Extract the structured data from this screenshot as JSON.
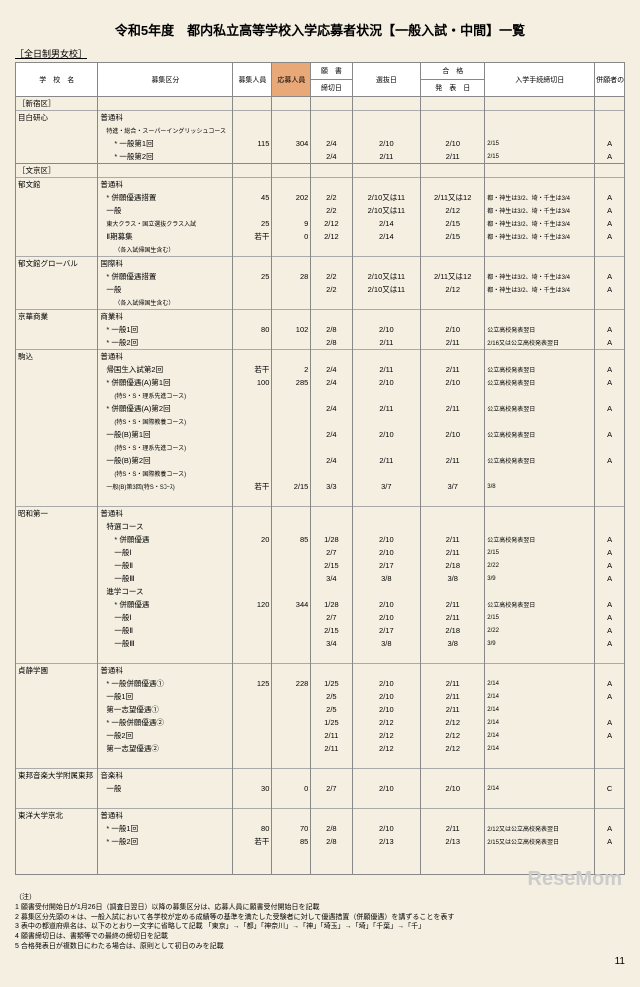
{
  "title": "令和5年度　都内私立高等学校入学応募者状況【一般入試・中間】一覧",
  "subtitle": "［全日制男女校］",
  "headers": {
    "school": "学　校　名",
    "category": "募集区分",
    "capacity": "募集人員",
    "applicants": "応募人員",
    "gansho": "願　書",
    "deadline": "締切日",
    "selection": "選抜日",
    "pass": "合　格",
    "announce": "発　表　日",
    "procedure": "入学手続締切日",
    "special": "併願者の特例取扱い"
  },
  "rows": [
    {
      "type": "ward",
      "school": "［新宿区］"
    },
    {
      "type": "school",
      "school": "目白研心",
      "cat": "普通科"
    },
    {
      "cat": "特進・総合・スーパーイングリッシュコース",
      "cls": "pl1 sm"
    },
    {
      "cat": "* 一般第1回",
      "cls": "pl2",
      "cap": "115",
      "app": "304",
      "dl": "2/4",
      "sel": "2/10",
      "ann": "2/10",
      "proc": "2/15",
      "sp": "A"
    },
    {
      "cat": "* 一般第2回",
      "cls": "pl2",
      "dl": "2/4",
      "sel": "2/11",
      "ann": "2/11",
      "proc": "2/15",
      "sp": "A"
    },
    {
      "type": "ward",
      "school": "［文京区］"
    },
    {
      "type": "school",
      "school": "郁文館",
      "cat": "普通科"
    },
    {
      "cat": "* 併願優遇措置",
      "cls": "pl1",
      "cap": "45",
      "app": "202",
      "dl": "2/2",
      "sel": "2/10又は11",
      "ann": "2/11又は12",
      "proc": "都・神生は3/2、埼・千生は3/4",
      "sp": "A"
    },
    {
      "cat": "一般",
      "cls": "pl1",
      "dl": "2/2",
      "sel": "2/10又は11",
      "ann": "2/12",
      "proc": "都・神生は3/2、埼・千生は3/4",
      "sp": "A"
    },
    {
      "cat": "東大クラス・国立選抜クラス入試",
      "cls": "pl1 sm",
      "cap": "25",
      "app": "9",
      "dl": "2/12",
      "sel": "2/14",
      "ann": "2/15",
      "proc": "都・神生は3/2、埼・千生は3/4",
      "sp": "A"
    },
    {
      "cat": "Ⅱ期募集",
      "cls": "pl1",
      "cap": "若干",
      "app": "0",
      "dl": "2/12",
      "sel": "2/14",
      "ann": "2/15",
      "proc": "都・神生は3/2、埼・千生は3/4",
      "sp": "A"
    },
    {
      "cat": "（各入試帰国生含む）",
      "cls": "pl2 sm"
    },
    {
      "type": "school",
      "school": "郁文館グローバル",
      "cat": "国際科"
    },
    {
      "cat": "* 併願優遇措置",
      "cls": "pl1",
      "cap": "25",
      "app": "28",
      "dl": "2/2",
      "sel": "2/10又は11",
      "ann": "2/11又は12",
      "proc": "都・神生は3/2、埼・千生は3/4",
      "sp": "A"
    },
    {
      "cat": "一般",
      "cls": "pl1",
      "dl": "2/2",
      "sel": "2/10又は11",
      "ann": "2/12",
      "proc": "都・神生は3/2、埼・千生は3/4",
      "sp": "A"
    },
    {
      "cat": "（各入試帰国生含む）",
      "cls": "pl2 sm"
    },
    {
      "type": "school",
      "school": "京華商業",
      "cat": "商業科"
    },
    {
      "cat": "* 一般1回",
      "cls": "pl1",
      "cap": "80",
      "app": "102",
      "dl": "2/8",
      "sel": "2/10",
      "ann": "2/10",
      "proc": "公立高校発表翌日",
      "sp": "A"
    },
    {
      "cat": "* 一般2回",
      "cls": "pl1",
      "dl": "2/8",
      "sel": "2/11",
      "ann": "2/11",
      "proc": "2/16又は公立高校発表翌日",
      "sp": "A"
    },
    {
      "type": "school",
      "school": "駒込",
      "cat": "普通科"
    },
    {
      "cat": "帰国生入試第2回",
      "cls": "pl1",
      "cap": "若干",
      "app": "2",
      "dl": "2/4",
      "sel": "2/11",
      "ann": "2/11",
      "proc": "公立高校発表翌日",
      "sp": "A"
    },
    {
      "cat": "* 併願優遇(A)第1回",
      "cls": "pl1",
      "cap": "100",
      "app": "285",
      "dl": "2/4",
      "sel": "2/10",
      "ann": "2/10",
      "proc": "公立高校発表翌日",
      "sp": "A"
    },
    {
      "cat": "(特S・S・理系先進コース)",
      "cls": "pl2 sm"
    },
    {
      "cat": "* 併願優遇(A)第2回",
      "cls": "pl1",
      "dl": "2/4",
      "sel": "2/11",
      "ann": "2/11",
      "proc": "公立高校発表翌日",
      "sp": "A"
    },
    {
      "cat": "(特S・S・国際教養コース)",
      "cls": "pl2 sm"
    },
    {
      "cat": "一般(B)第1回",
      "cls": "pl1",
      "dl": "2/4",
      "sel": "2/10",
      "ann": "2/10",
      "proc": "公立高校発表翌日",
      "sp": "A"
    },
    {
      "cat": "(特S・S・理系先進コース)",
      "cls": "pl2 sm"
    },
    {
      "cat": "一般(B)第2回",
      "cls": "pl1",
      "dl": "2/4",
      "sel": "2/11",
      "ann": "2/11",
      "proc": "公立高校発表翌日",
      "sp": "A"
    },
    {
      "cat": "(特S・S・国際教養コース)",
      "cls": "pl2 sm"
    },
    {
      "cat": "一般(B)第3回(特S・Sｺｰｽ)",
      "cls": "pl1 sm",
      "cap": "若干",
      "app": "2/15",
      "dl": "3/3",
      "sel": "3/7",
      "ann": "3/7",
      "proc": "3/8"
    },
    {
      "type": "spacer"
    },
    {
      "type": "school",
      "school": "昭和第一",
      "cat": "普通科"
    },
    {
      "cat": "特選コース",
      "cls": "pl1"
    },
    {
      "cat": "* 併願優遇",
      "cls": "pl2",
      "cap": "20",
      "app": "85",
      "dl": "1/28",
      "sel": "2/10",
      "ann": "2/11",
      "proc": "公立高校発表翌日",
      "sp": "A"
    },
    {
      "cat": "一般Ⅰ",
      "cls": "pl2",
      "dl": "2/7",
      "sel": "2/10",
      "ann": "2/11",
      "proc": "2/15",
      "sp": "A"
    },
    {
      "cat": "一般Ⅱ",
      "cls": "pl2",
      "dl": "2/15",
      "sel": "2/17",
      "ann": "2/18",
      "proc": "2/22",
      "sp": "A"
    },
    {
      "cat": "一般Ⅲ",
      "cls": "pl2",
      "dl": "3/4",
      "sel": "3/8",
      "ann": "3/8",
      "proc": "3/9",
      "sp": "A"
    },
    {
      "cat": "進学コース",
      "cls": "pl1"
    },
    {
      "cat": "* 併願優遇",
      "cls": "pl2",
      "cap": "120",
      "app": "344",
      "dl": "1/28",
      "sel": "2/10",
      "ann": "2/11",
      "proc": "公立高校発表翌日",
      "sp": "A"
    },
    {
      "cat": "一般Ⅰ",
      "cls": "pl2",
      "dl": "2/7",
      "sel": "2/10",
      "ann": "2/11",
      "proc": "2/15",
      "sp": "A"
    },
    {
      "cat": "一般Ⅱ",
      "cls": "pl2",
      "dl": "2/15",
      "sel": "2/17",
      "ann": "2/18",
      "proc": "2/22",
      "sp": "A"
    },
    {
      "cat": "一般Ⅲ",
      "cls": "pl2",
      "dl": "3/4",
      "sel": "3/8",
      "ann": "3/8",
      "proc": "3/9",
      "sp": "A"
    },
    {
      "type": "spacer"
    },
    {
      "type": "school",
      "school": "貞静学園",
      "cat": "普通科"
    },
    {
      "cat": "* 一般併願優遇①",
      "cls": "pl1",
      "cap": "125",
      "app": "228",
      "dl": "1/25",
      "sel": "2/10",
      "ann": "2/11",
      "proc": "2/14",
      "sp": "A"
    },
    {
      "cat": "一般1回",
      "cls": "pl1",
      "dl": "2/5",
      "sel": "2/10",
      "ann": "2/11",
      "proc": "2/14",
      "sp": "A"
    },
    {
      "cat": "第一志望優遇①",
      "cls": "pl1",
      "dl": "2/5",
      "sel": "2/10",
      "ann": "2/11",
      "proc": "2/14"
    },
    {
      "cat": "* 一般併願優遇②",
      "cls": "pl1",
      "dl": "1/25",
      "sel": "2/12",
      "ann": "2/12",
      "proc": "2/14",
      "sp": "A"
    },
    {
      "cat": "一般2回",
      "cls": "pl1",
      "dl": "2/11",
      "sel": "2/12",
      "ann": "2/12",
      "proc": "2/14",
      "sp": "A"
    },
    {
      "cat": "第一志望優遇②",
      "cls": "pl1",
      "dl": "2/11",
      "sel": "2/12",
      "ann": "2/12",
      "proc": "2/14"
    },
    {
      "type": "spacer"
    },
    {
      "type": "school",
      "school": "東邦音楽大学附属東邦",
      "cat": "音楽科"
    },
    {
      "cat": "一般",
      "cls": "pl1",
      "cap": "30",
      "app": "0",
      "dl": "2/7",
      "sel": "2/10",
      "ann": "2/10",
      "proc": "2/14",
      "sp": "C"
    },
    {
      "type": "spacer"
    },
    {
      "type": "school",
      "school": "東洋大学京北",
      "cat": "普通科"
    },
    {
      "cat": "* 一般1回",
      "cls": "pl1",
      "cap": "80",
      "app": "70",
      "dl": "2/8",
      "sel": "2/10",
      "ann": "2/11",
      "proc": "2/12又は公立高校発表翌日",
      "sp": "A"
    },
    {
      "cat": "* 一般2回",
      "cls": "pl1",
      "cap": "若干",
      "app": "85",
      "dl": "2/8",
      "sel": "2/13",
      "ann": "2/13",
      "proc": "2/15又は公立高校発表翌日",
      "sp": "A"
    },
    {
      "type": "spacer"
    },
    {
      "type": "spacer"
    }
  ],
  "notes": [
    "（注）",
    "1 願書受付開始日が1月26日（調査日翌日）以降の募集区分は、応募人員に願書受付開始日を記載",
    "2 募集区分先頭の＊は、一般入試において各学校が定める成績等の基準を満たした受験者に対して優遇措置（併願優遇）を講ずることを表す",
    "3 表中の都道府県名は、以下のとおり一文字に省略して記載 「東京」→「都」「神奈川」→「神」「埼玉」→「埼」「千葉」→「千」",
    "4 願書締切日は、書類等での最終の締切日を記載",
    "5 合格発表日が複数日にわたる場合は、原則として初日のみを記載"
  ],
  "page": "11",
  "watermark": "ReseMom"
}
